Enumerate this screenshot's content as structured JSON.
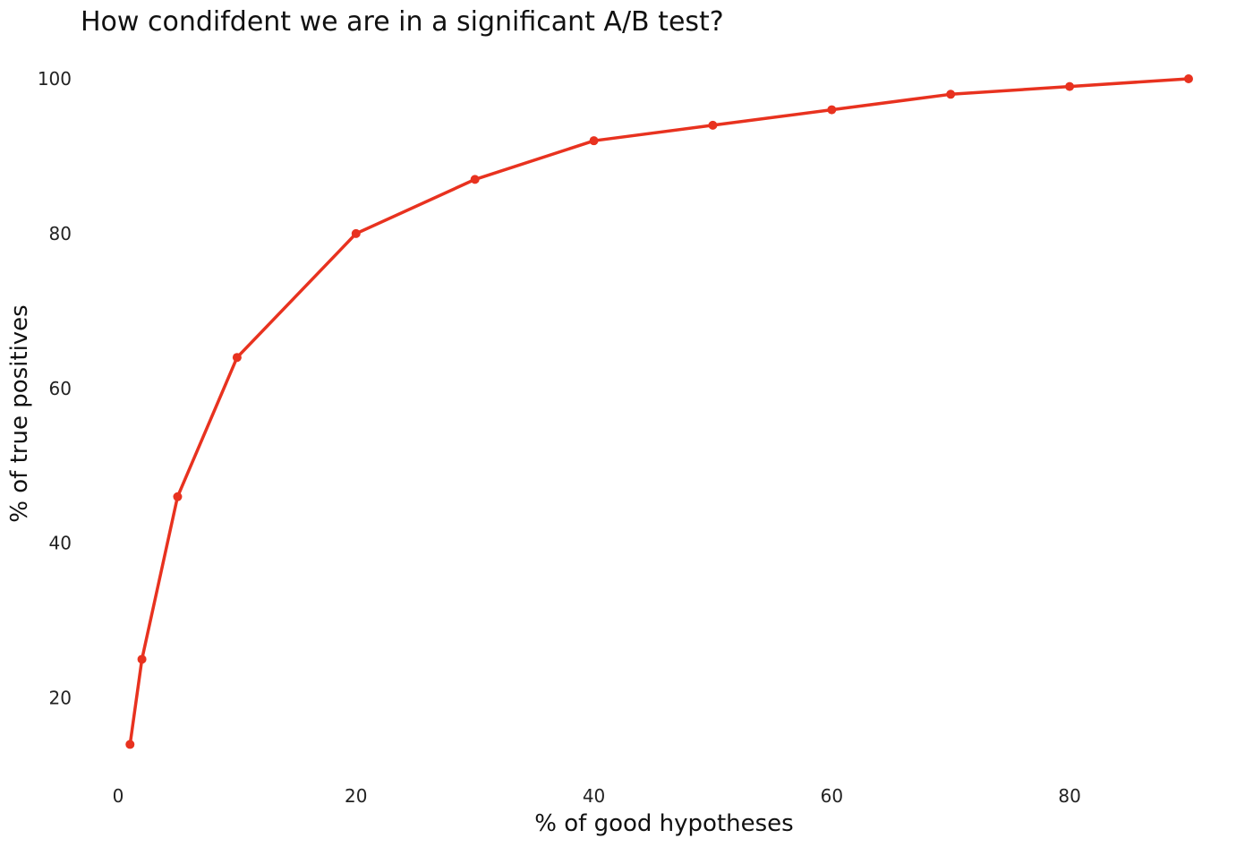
{
  "chart_data": {
    "type": "line",
    "title": "How condifdent we are in a significant A/B test?",
    "xlabel": "% of good hypotheses",
    "ylabel": "% of true positives",
    "xlim": [
      0,
      90
    ],
    "ylim": [
      10,
      100
    ],
    "x_ticks": [
      0,
      20,
      40,
      60,
      80
    ],
    "y_ticks": [
      20,
      40,
      60,
      80,
      100
    ],
    "grid": false,
    "legend": "none",
    "series": [
      {
        "color": "#e8321f",
        "points": [
          {
            "x": 1,
            "y": 14
          },
          {
            "x": 2,
            "y": 25
          },
          {
            "x": 5,
            "y": 46
          },
          {
            "x": 10,
            "y": 64
          },
          {
            "x": 20,
            "y": 80
          },
          {
            "x": 30,
            "y": 87
          },
          {
            "x": 40,
            "y": 92
          },
          {
            "x": 50,
            "y": 94
          },
          {
            "x": 60,
            "y": 96
          },
          {
            "x": 70,
            "y": 98
          },
          {
            "x": 80,
            "y": 99
          },
          {
            "x": 90,
            "y": 100
          }
        ]
      }
    ]
  }
}
